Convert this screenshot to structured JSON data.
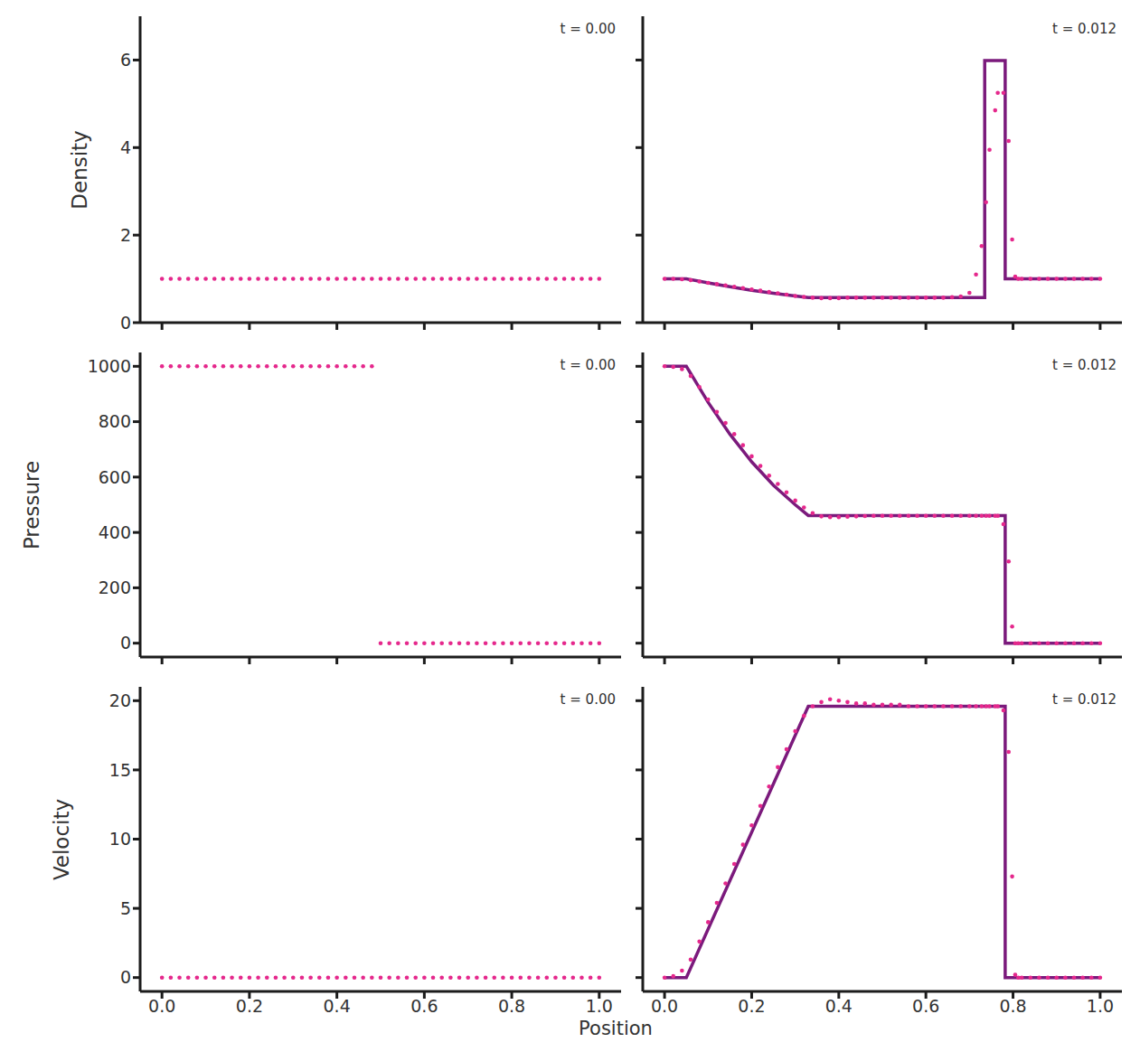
{
  "xlabel": "Position",
  "chart_data": [
    {
      "type": "scatter",
      "ylabel": "Density",
      "annotation": "t = 0.00",
      "tick_labels": "y",
      "xlim": [
        -0.05,
        1.05
      ],
      "xticks": [
        {
          "value": 0,
          "label": "0.0"
        },
        0.2,
        0.4,
        0.6,
        0.8,
        {
          "value": 1,
          "label": "1.0"
        }
      ],
      "ylim": [
        0,
        7
      ],
      "yticks": [
        0,
        2,
        4,
        6
      ],
      "series": [
        {
          "type": "scatter",
          "marker": "circle",
          "color": "#e5288c",
          "x": [
            0,
            0.02,
            0.04,
            0.06,
            0.08,
            0.1,
            0.12,
            0.14,
            0.16,
            0.18,
            0.2,
            0.22,
            0.24,
            0.26,
            0.28,
            0.3,
            0.32,
            0.34,
            0.36,
            0.38,
            0.4,
            0.42,
            0.44,
            0.46,
            0.48,
            0.5,
            0.52,
            0.54,
            0.56,
            0.58,
            0.6,
            0.62,
            0.64,
            0.66,
            0.68,
            0.7,
            0.72,
            0.74,
            0.76,
            0.78,
            0.8,
            0.82,
            0.84,
            0.86,
            0.88,
            0.9,
            0.92,
            0.94,
            0.96,
            0.98,
            1.0
          ],
          "values": [
            1,
            1,
            1,
            1,
            1,
            1,
            1,
            1,
            1,
            1,
            1,
            1,
            1,
            1,
            1,
            1,
            1,
            1,
            1,
            1,
            1,
            1,
            1,
            1,
            1,
            1,
            1,
            1,
            1,
            1,
            1,
            1,
            1,
            1,
            1,
            1,
            1,
            1,
            1,
            1,
            1,
            1,
            1,
            1,
            1,
            1,
            1,
            1,
            1,
            1,
            1
          ]
        }
      ]
    },
    {
      "type": "scatter",
      "annotation": "t = 0.012",
      "tick_labels": false,
      "xlim": [
        -0.05,
        1.05
      ],
      "xticks": [
        {
          "value": 0,
          "label": "0.0"
        },
        0.2,
        0.4,
        0.6,
        0.8,
        {
          "value": 1,
          "label": "1.0"
        }
      ],
      "ylim": [
        0,
        7
      ],
      "yticks": [
        0,
        2,
        4,
        6
      ],
      "series": [
        {
          "type": "line",
          "line_style": "solid",
          "color": "#7b1a7c",
          "x": [
            0,
            0.05,
            0.1,
            0.15,
            0.2,
            0.25,
            0.3,
            0.33,
            0.735,
            0.735,
            0.782,
            0.782,
            1.0
          ],
          "values": [
            1,
            1,
            0.91,
            0.82,
            0.74,
            0.67,
            0.61,
            0.575,
            0.575,
            5.99,
            5.99,
            1,
            1
          ]
        },
        {
          "type": "scatter",
          "marker": "circle",
          "color": "#e5288c",
          "x": [
            0,
            0.02,
            0.04,
            0.06,
            0.08,
            0.1,
            0.12,
            0.14,
            0.16,
            0.18,
            0.2,
            0.22,
            0.24,
            0.26,
            0.28,
            0.3,
            0.32,
            0.34,
            0.36,
            0.38,
            0.4,
            0.42,
            0.44,
            0.46,
            0.48,
            0.5,
            0.52,
            0.54,
            0.56,
            0.58,
            0.6,
            0.62,
            0.64,
            0.66,
            0.68,
            0.7,
            0.715,
            0.728,
            0.738,
            0.746,
            0.759,
            0.765,
            0.778,
            0.79,
            0.798,
            0.805,
            0.812,
            0.82,
            0.84,
            0.86,
            0.88,
            0.9,
            0.92,
            0.94,
            0.96,
            0.98,
            1.0
          ],
          "values": [
            1.0,
            1.0,
            0.99,
            0.97,
            0.94,
            0.91,
            0.88,
            0.85,
            0.82,
            0.79,
            0.76,
            0.73,
            0.7,
            0.67,
            0.64,
            0.61,
            0.59,
            0.57,
            0.56,
            0.56,
            0.56,
            0.57,
            0.57,
            0.57,
            0.57,
            0.57,
            0.57,
            0.57,
            0.57,
            0.57,
            0.57,
            0.57,
            0.57,
            0.58,
            0.6,
            0.68,
            1.1,
            1.75,
            2.75,
            3.95,
            4.85,
            5.25,
            5.25,
            4.15,
            1.9,
            1.05,
            1.0,
            1.0,
            1.0,
            1.0,
            1.0,
            1.0,
            1.0,
            1.0,
            1.0,
            1.0,
            1.0
          ]
        }
      ]
    },
    {
      "type": "scatter",
      "ylabel": "Pressure",
      "annotation": "t = 0.00",
      "tick_labels": "y",
      "xlim": [
        -0.05,
        1.05
      ],
      "xticks": [
        {
          "value": 0,
          "label": "0.0"
        },
        0.2,
        0.4,
        0.6,
        0.8,
        {
          "value": 1,
          "label": "1.0"
        }
      ],
      "ylim": [
        -50,
        1050
      ],
      "yticks": [
        0,
        200,
        400,
        600,
        800,
        1000
      ],
      "series": [
        {
          "type": "scatter",
          "marker": "circle",
          "color": "#e5288c",
          "x": [
            0,
            0.02,
            0.04,
            0.06,
            0.08,
            0.1,
            0.12,
            0.14,
            0.16,
            0.18,
            0.2,
            0.22,
            0.24,
            0.26,
            0.28,
            0.3,
            0.32,
            0.34,
            0.36,
            0.38,
            0.4,
            0.42,
            0.44,
            0.46,
            0.48,
            0.5,
            0.52,
            0.54,
            0.56,
            0.58,
            0.6,
            0.62,
            0.64,
            0.66,
            0.68,
            0.7,
            0.72,
            0.74,
            0.76,
            0.78,
            0.8,
            0.82,
            0.84,
            0.86,
            0.88,
            0.9,
            0.92,
            0.94,
            0.96,
            0.98,
            1.0
          ],
          "values": [
            1000,
            1000,
            1000,
            1000,
            1000,
            1000,
            1000,
            1000,
            1000,
            1000,
            1000,
            1000,
            1000,
            1000,
            1000,
            1000,
            1000,
            1000,
            1000,
            1000,
            1000,
            1000,
            1000,
            1000,
            1000,
            0.01,
            0.01,
            0.01,
            0.01,
            0.01,
            0.01,
            0.01,
            0.01,
            0.01,
            0.01,
            0.01,
            0.01,
            0.01,
            0.01,
            0.01,
            0.01,
            0.01,
            0.01,
            0.01,
            0.01,
            0.01,
            0.01,
            0.01,
            0.01,
            0.01,
            0.01
          ]
        }
      ]
    },
    {
      "type": "scatter",
      "annotation": "t = 0.012",
      "tick_labels": false,
      "xlim": [
        -0.05,
        1.05
      ],
      "xticks": [
        {
          "value": 0,
          "label": "0.0"
        },
        0.2,
        0.4,
        0.6,
        0.8,
        {
          "value": 1,
          "label": "1.0"
        }
      ],
      "ylim": [
        -50,
        1050
      ],
      "yticks": [
        0,
        200,
        400,
        600,
        800,
        1000
      ],
      "series": [
        {
          "type": "line",
          "line_style": "solid",
          "color": "#7b1a7c",
          "x": [
            0,
            0.05,
            0.1,
            0.15,
            0.2,
            0.25,
            0.3,
            0.33,
            0.782,
            0.782,
            1.0
          ],
          "values": [
            1000,
            1000,
            870,
            755,
            655,
            570,
            500,
            461,
            461,
            0.01,
            0.01
          ]
        },
        {
          "type": "scatter",
          "marker": "circle",
          "color": "#e5288c",
          "x": [
            0,
            0.02,
            0.04,
            0.06,
            0.08,
            0.1,
            0.12,
            0.14,
            0.16,
            0.18,
            0.2,
            0.22,
            0.24,
            0.26,
            0.28,
            0.3,
            0.32,
            0.34,
            0.36,
            0.38,
            0.4,
            0.42,
            0.44,
            0.46,
            0.48,
            0.5,
            0.52,
            0.54,
            0.56,
            0.58,
            0.6,
            0.62,
            0.64,
            0.66,
            0.68,
            0.7,
            0.715,
            0.728,
            0.738,
            0.746,
            0.759,
            0.765,
            0.778,
            0.79,
            0.798,
            0.805,
            0.812,
            0.82,
            0.84,
            0.86,
            0.88,
            0.9,
            0.92,
            0.94,
            0.96,
            0.98,
            1.0
          ],
          "values": [
            1000,
            998,
            990,
            965,
            925,
            880,
            835,
            795,
            755,
            715,
            675,
            640,
            605,
            575,
            545,
            515,
            490,
            470,
            458,
            455,
            455,
            457,
            458,
            459,
            460,
            460,
            460,
            460,
            460,
            460,
            460,
            460,
            460,
            460,
            460,
            460,
            460,
            460,
            460,
            460,
            460,
            460,
            430,
            295,
            60,
            0.01,
            0.01,
            0.01,
            0.01,
            0.01,
            0.01,
            0.01,
            0.01,
            0.01,
            0.01,
            0.01,
            0.01
          ]
        }
      ]
    },
    {
      "type": "scatter",
      "ylabel": "Velocity",
      "annotation": "t = 0.00",
      "xlim": [
        -0.05,
        1.05
      ],
      "xticks": [
        {
          "value": 0,
          "label": "0.0"
        },
        0.2,
        0.4,
        0.6,
        0.8,
        {
          "value": 1,
          "label": "1.0"
        }
      ],
      "ylim": [
        -1,
        21
      ],
      "yticks": [
        0,
        5,
        10,
        15,
        20
      ],
      "series": [
        {
          "type": "scatter",
          "marker": "circle",
          "color": "#e5288c",
          "x": [
            0,
            0.02,
            0.04,
            0.06,
            0.08,
            0.1,
            0.12,
            0.14,
            0.16,
            0.18,
            0.2,
            0.22,
            0.24,
            0.26,
            0.28,
            0.3,
            0.32,
            0.34,
            0.36,
            0.38,
            0.4,
            0.42,
            0.44,
            0.46,
            0.48,
            0.5,
            0.52,
            0.54,
            0.56,
            0.58,
            0.6,
            0.62,
            0.64,
            0.66,
            0.68,
            0.7,
            0.72,
            0.74,
            0.76,
            0.78,
            0.8,
            0.82,
            0.84,
            0.86,
            0.88,
            0.9,
            0.92,
            0.94,
            0.96,
            0.98,
            1.0
          ],
          "values": [
            0,
            0,
            0,
            0,
            0,
            0,
            0,
            0,
            0,
            0,
            0,
            0,
            0,
            0,
            0,
            0,
            0,
            0,
            0,
            0,
            0,
            0,
            0,
            0,
            0,
            0,
            0,
            0,
            0,
            0,
            0,
            0,
            0,
            0,
            0,
            0,
            0,
            0,
            0,
            0,
            0,
            0,
            0,
            0,
            0,
            0,
            0,
            0,
            0,
            0,
            0
          ]
        }
      ]
    },
    {
      "type": "scatter",
      "annotation": "t = 0.012",
      "tick_labels": "x",
      "xlim": [
        -0.05,
        1.05
      ],
      "xticks": [
        {
          "value": 0,
          "label": "0.0"
        },
        0.2,
        0.4,
        0.6,
        0.8,
        {
          "value": 1,
          "label": "1.0"
        }
      ],
      "ylim": [
        -1,
        21
      ],
      "yticks": [
        0,
        5,
        10,
        15,
        20
      ],
      "series": [
        {
          "type": "line",
          "line_style": "solid",
          "color": "#7b1a7c",
          "x": [
            0,
            0.05,
            0.33,
            0.782,
            0.782,
            1.0
          ],
          "values": [
            0,
            0,
            19.6,
            19.6,
            0,
            0
          ]
        },
        {
          "type": "scatter",
          "marker": "circle",
          "color": "#e5288c",
          "x": [
            0,
            0.02,
            0.04,
            0.06,
            0.08,
            0.1,
            0.12,
            0.14,
            0.16,
            0.18,
            0.2,
            0.22,
            0.24,
            0.26,
            0.28,
            0.3,
            0.32,
            0.34,
            0.36,
            0.38,
            0.4,
            0.42,
            0.44,
            0.46,
            0.48,
            0.5,
            0.52,
            0.54,
            0.56,
            0.58,
            0.6,
            0.62,
            0.64,
            0.66,
            0.68,
            0.7,
            0.715,
            0.728,
            0.738,
            0.746,
            0.759,
            0.765,
            0.778,
            0.79,
            0.798,
            0.805,
            0.812,
            0.82,
            0.84,
            0.86,
            0.88,
            0.9,
            0.92,
            0.94,
            0.96,
            0.98,
            1.0
          ],
          "values": [
            0,
            0.1,
            0.5,
            1.3,
            2.6,
            4.0,
            5.4,
            6.8,
            8.2,
            9.6,
            11.0,
            12.4,
            13.8,
            15.2,
            16.5,
            17.8,
            18.9,
            19.6,
            19.9,
            20.1,
            20.0,
            19.9,
            19.8,
            19.8,
            19.7,
            19.7,
            19.7,
            19.7,
            19.6,
            19.6,
            19.6,
            19.6,
            19.6,
            19.6,
            19.6,
            19.6,
            19.6,
            19.6,
            19.6,
            19.6,
            19.6,
            19.6,
            19.3,
            16.3,
            7.3,
            0.2,
            0,
            0,
            0,
            0,
            0,
            0,
            0,
            0,
            0,
            0,
            0
          ]
        }
      ]
    }
  ]
}
